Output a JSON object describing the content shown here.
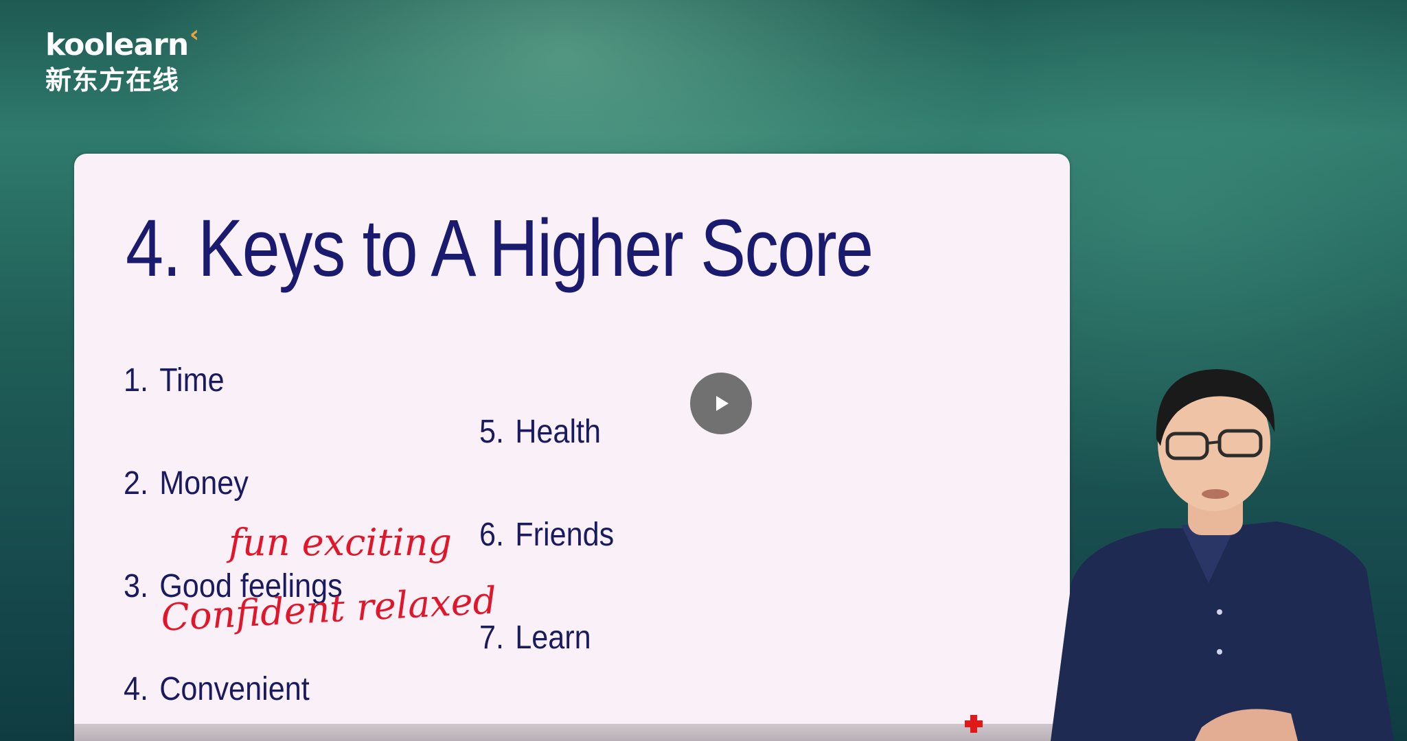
{
  "logo": {
    "word": "koolearn",
    "chevron": "‹",
    "cn": "新东方在线"
  },
  "slide": {
    "title": "4. Keys to A Higher Score",
    "items_left": [
      {
        "num": "1.",
        "label": "Time"
      },
      {
        "num": "2.",
        "label": "Money"
      },
      {
        "num": "3.",
        "label": "Good feelings"
      },
      {
        "num": "4.",
        "label": "Convenient"
      }
    ],
    "items_right": [
      {
        "num": "5.",
        "label": "Health"
      },
      {
        "num": "6.",
        "label": "Friends"
      },
      {
        "num": "7.",
        "label": "Learn"
      }
    ],
    "annotations": {
      "line1": "fun exciting",
      "line2": "Confident relaxed"
    },
    "annotation_color": "#e2162a",
    "text_color": "#1a1a6e"
  },
  "player": {
    "play_icon": "play-icon"
  }
}
